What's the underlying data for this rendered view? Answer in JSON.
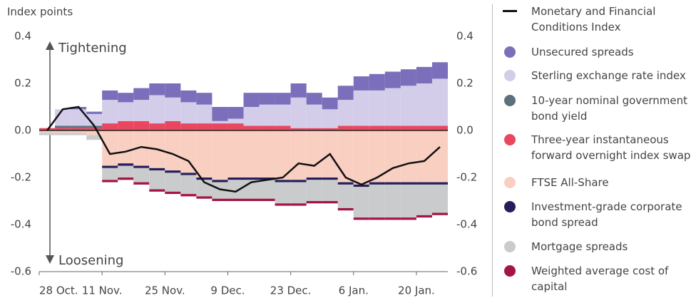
{
  "chart_data": {
    "type": "bar",
    "stacked": true,
    "y_label": "Index points",
    "annotations": [
      "Tightening",
      "Loosening"
    ],
    "categories": [
      "28 Oct.",
      null,
      null,
      null,
      "11 Nov.",
      null,
      null,
      null,
      "25 Nov.",
      null,
      null,
      null,
      "9 Dec.",
      null,
      null,
      null,
      "23 Dec.",
      null,
      null,
      null,
      "6 Jan.",
      null,
      null,
      null,
      "20 Jan.",
      null
    ],
    "ylim": [
      -0.6,
      0.4
    ],
    "yticks": [
      0.4,
      0.2,
      {
        "value": 0,
        "label": "0.0"
      },
      -0.2,
      -0.4,
      -0.6
    ],
    "y2lim": [
      -0.6,
      0.4
    ],
    "y2ticks": [
      0.4,
      0.2,
      {
        "value": 0,
        "label": "0.0"
      },
      -0.2,
      -0.4,
      -0.6
    ],
    "grid": false,
    "series": [
      {
        "name": "Monetary and Financial Conditions Index",
        "type": "line",
        "color": "#111111",
        "values": [
          0.0,
          0.09,
          0.1,
          0.02,
          -0.1,
          -0.09,
          -0.07,
          -0.08,
          -0.1,
          -0.13,
          -0.22,
          -0.25,
          -0.26,
          -0.22,
          -0.21,
          -0.2,
          -0.14,
          -0.15,
          -0.1,
          -0.2,
          -0.23,
          -0.2,
          -0.16,
          -0.14,
          -0.13,
          -0.07
        ]
      },
      {
        "name": "Unsecured spreads",
        "color": "#7b6fbb",
        "values": [
          0,
          0,
          0.01,
          0.01,
          0.04,
          0.04,
          0.05,
          0.05,
          0.06,
          0.05,
          0.05,
          0.06,
          0.05,
          0.06,
          0.05,
          0.05,
          0.06,
          0.05,
          0.05,
          0.06,
          0.06,
          0.07,
          0.07,
          0.07,
          0.07,
          0.07
        ]
      },
      {
        "name": "Sterling exchange rate index",
        "color": "#d3cdea",
        "values": [
          0,
          0.07,
          0.07,
          0.05,
          0.1,
          0.08,
          0.09,
          0.12,
          0.1,
          0.09,
          0.08,
          0.01,
          0.02,
          0.08,
          0.09,
          0.09,
          0.13,
          0.1,
          0.08,
          0.11,
          0.15,
          0.15,
          0.16,
          0.17,
          0.18,
          0.2
        ]
      },
      {
        "name": "10-year nominal government bond yield",
        "color": "#5e707c",
        "values": [
          0,
          0.01,
          0.01,
          0.01,
          0,
          0,
          0,
          0,
          0,
          0,
          0,
          0,
          0,
          0,
          0,
          0,
          0,
          0,
          0,
          0,
          0,
          0,
          0,
          0,
          0,
          0
        ]
      },
      {
        "name": "Three-year instantaneous forward overnight index swap",
        "color": "#e8475f",
        "values": [
          0.01,
          0.01,
          0.01,
          0.01,
          0.03,
          0.04,
          0.04,
          0.03,
          0.04,
          0.03,
          0.03,
          0.03,
          0.03,
          0.02,
          0.02,
          0.02,
          0.01,
          0.01,
          0.01,
          0.02,
          0.02,
          0.02,
          0.02,
          0.02,
          0.02,
          0.02
        ]
      },
      {
        "name": "FTSE All-Share",
        "color": "#f9cfc2",
        "values": [
          -0.01,
          -0.01,
          -0.01,
          -0.02,
          -0.15,
          -0.14,
          -0.15,
          -0.16,
          -0.17,
          -0.18,
          -0.2,
          -0.21,
          -0.2,
          -0.2,
          -0.2,
          -0.21,
          -0.21,
          -0.2,
          -0.2,
          -0.22,
          -0.23,
          -0.22,
          -0.22,
          -0.22,
          -0.22,
          -0.22
        ]
      },
      {
        "name": "Investment-grade corporate bond spread",
        "color": "#241f5c",
        "values": [
          0,
          0,
          0,
          0,
          -0.01,
          -0.01,
          -0.01,
          -0.01,
          -0.01,
          -0.01,
          -0.01,
          -0.01,
          -0.01,
          -0.01,
          -0.01,
          -0.01,
          -0.01,
          -0.01,
          -0.01,
          -0.01,
          -0.01,
          -0.01,
          -0.01,
          -0.01,
          -0.01,
          -0.01
        ]
      },
      {
        "name": "Mortgage spreads",
        "color": "#c9cbcc",
        "values": [
          -0.01,
          -0.01,
          -0.01,
          -0.02,
          -0.05,
          -0.05,
          -0.06,
          -0.08,
          -0.08,
          -0.08,
          -0.07,
          -0.07,
          -0.08,
          -0.08,
          -0.08,
          -0.09,
          -0.09,
          -0.09,
          -0.09,
          -0.1,
          -0.13,
          -0.14,
          -0.14,
          -0.14,
          -0.13,
          -0.12
        ]
      },
      {
        "name": "Weighted average cost of capital",
        "color": "#a31545",
        "values": [
          0,
          0,
          0,
          0,
          -0.01,
          -0.01,
          -0.01,
          -0.01,
          -0.01,
          -0.01,
          -0.01,
          -0.01,
          -0.01,
          -0.01,
          -0.01,
          -0.01,
          -0.01,
          -0.01,
          -0.01,
          -0.01,
          -0.01,
          -0.01,
          -0.01,
          -0.01,
          -0.01,
          -0.01
        ]
      }
    ]
  }
}
